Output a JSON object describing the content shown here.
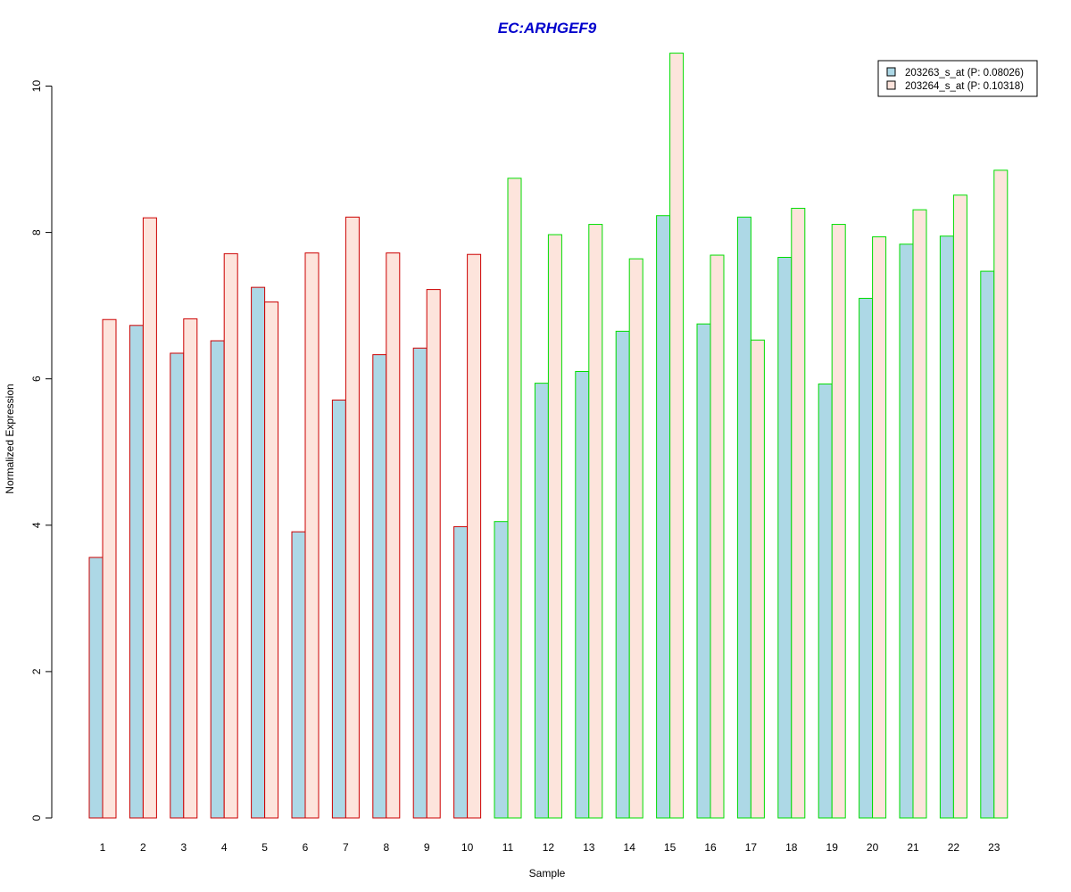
{
  "chart_data": {
    "type": "bar",
    "title": "EC:ARHGEF9",
    "xlabel": "Sample",
    "ylabel": "Normalized Expression",
    "categories": [
      "1",
      "2",
      "3",
      "4",
      "5",
      "6",
      "7",
      "8",
      "9",
      "10",
      "11",
      "12",
      "13",
      "14",
      "15",
      "16",
      "17",
      "18",
      "19",
      "20",
      "21",
      "22",
      "23"
    ],
    "ylim": [
      0,
      10.5
    ],
    "yticks": [
      0,
      2,
      4,
      6,
      8,
      10
    ],
    "grid": false,
    "legend_position": "top-right",
    "series": [
      {
        "name": "203263_s_at (P: 0.08026)",
        "fill": "#add8e6",
        "values": [
          3.56,
          6.73,
          6.35,
          6.52,
          7.25,
          3.91,
          5.71,
          6.33,
          6.42,
          3.98,
          4.05,
          5.94,
          6.1,
          6.65,
          8.23,
          6.75,
          8.21,
          7.66,
          5.93,
          7.1,
          7.84,
          7.95,
          7.47
        ]
      },
      {
        "name": "203264_s_at (P: 0.10318)",
        "fill": "#fde4dc",
        "values": [
          6.81,
          8.2,
          6.82,
          7.71,
          7.05,
          7.72,
          8.21,
          7.72,
          7.22,
          7.7,
          8.74,
          7.97,
          8.11,
          7.64,
          10.45,
          7.69,
          6.53,
          8.33,
          8.11,
          7.94,
          8.31,
          8.51,
          8.85
        ]
      }
    ],
    "group_outline_colors": [
      "#cc0000",
      "#cc0000",
      "#cc0000",
      "#cc0000",
      "#cc0000",
      "#cc0000",
      "#cc0000",
      "#cc0000",
      "#cc0000",
      "#cc0000",
      "#00dd00",
      "#00dd00",
      "#00dd00",
      "#00dd00",
      "#00dd00",
      "#00dd00",
      "#00dd00",
      "#00dd00",
      "#00dd00",
      "#00dd00",
      "#00dd00",
      "#00dd00",
      "#00dd00"
    ],
    "title_color": "#0000cc"
  }
}
